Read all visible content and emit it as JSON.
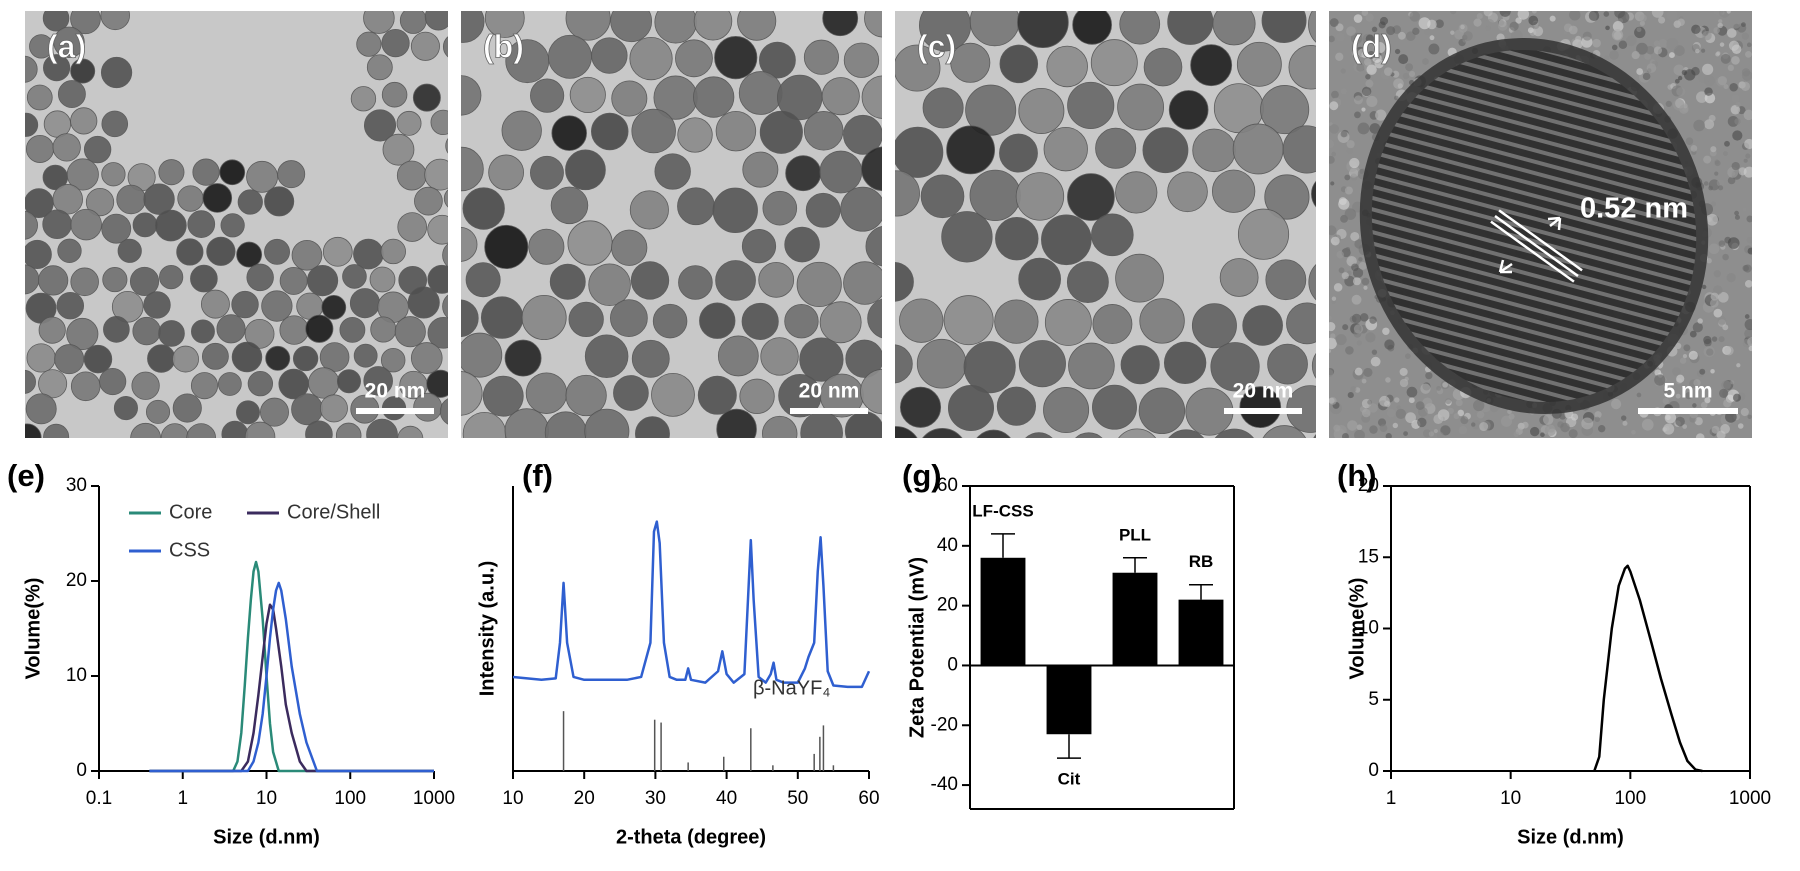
{
  "images": [
    {
      "panel": "(a)",
      "scale_bar": "20 nm"
    },
    {
      "panel": "(b)",
      "scale_bar": "20 nm"
    },
    {
      "panel": "(c)",
      "scale_bar": "20 nm"
    },
    {
      "panel": "(d)",
      "scale_bar": "5 nm",
      "annotation": "0.52 nm"
    }
  ],
  "chart_data": [
    {
      "type": "line",
      "panel": "(e)",
      "xlabel": "Size (d.nm)",
      "ylabel": "Volume(%)",
      "xscale": "log",
      "xlim": [
        0.1,
        1000
      ],
      "xticks": [
        0.1,
        1,
        10,
        100,
        1000
      ],
      "ylim": [
        0,
        30
      ],
      "yticks": [
        0,
        10,
        20,
        30
      ],
      "legend": "upper left",
      "series": [
        {
          "name": "Core",
          "color": "#2a8a78",
          "x": [
            0.4,
            4,
            4.5,
            5,
            5.5,
            6,
            6.5,
            7,
            7.5,
            8,
            9,
            10,
            11,
            12,
            14,
            1000
          ],
          "values": [
            0,
            0,
            1,
            4,
            9,
            14,
            18,
            21,
            22,
            21,
            16,
            10,
            5,
            2,
            0,
            0
          ]
        },
        {
          "name": "Core/Shell",
          "color": "#3b2b5e",
          "x": [
            0.4,
            5,
            6,
            7,
            8,
            9,
            10,
            11,
            12,
            13,
            15,
            17,
            20,
            25,
            30,
            1000
          ],
          "values": [
            0,
            0,
            1,
            4,
            8,
            12,
            15.5,
            17.5,
            17,
            15,
            11,
            7,
            4,
            1,
            0,
            0
          ]
        },
        {
          "name": "CSS",
          "color": "#2f5fd0",
          "x": [
            0.4,
            6,
            7,
            8,
            9,
            10,
            11,
            12,
            13,
            14,
            15,
            17,
            20,
            25,
            30,
            40,
            1000
          ],
          "values": [
            0,
            0,
            1,
            3,
            6,
            10,
            14,
            17,
            19,
            19.8,
            19,
            16,
            11,
            6,
            3,
            0,
            0
          ]
        }
      ]
    },
    {
      "type": "line",
      "panel": "(f)",
      "xlabel": "2-theta (degree)",
      "ylabel": "Intensity (a.u.)",
      "xlim": [
        10,
        60
      ],
      "xticks": [
        10,
        20,
        30,
        40,
        50,
        60
      ],
      "ylim": [
        0,
        100
      ],
      "color": "#2f5fd0",
      "x": [
        10,
        12,
        14,
        16,
        16.6,
        17.1,
        17.6,
        18.5,
        20,
        22,
        24,
        26,
        28,
        29.3,
        29.8,
        30.2,
        30.6,
        31.2,
        32,
        33,
        34.2,
        34.6,
        35,
        37,
        38.8,
        39.4,
        40,
        41,
        42.5,
        43,
        43.4,
        43.8,
        44.5,
        45.5,
        46.2,
        46.6,
        47,
        48,
        50,
        51,
        51.5,
        52.3,
        52.8,
        53.2,
        53.6,
        54.2,
        55,
        57,
        59,
        60
      ],
      "values": [
        33,
        32.5,
        32,
        32.5,
        45,
        66,
        45,
        33,
        32,
        32,
        32,
        32,
        33,
        45,
        84,
        87.5,
        80,
        45,
        33,
        32,
        32,
        36,
        32,
        31,
        35,
        42,
        34,
        31,
        34,
        60,
        81,
        60,
        33,
        31,
        34,
        38,
        32,
        31,
        31,
        36,
        40,
        45,
        70,
        82,
        65,
        35,
        30,
        29.5,
        29.5,
        35
      ],
      "reference": {
        "label": "β-NaYF₄",
        "color": "#555555",
        "x": [
          17.1,
          29.9,
          30.8,
          34.6,
          39.6,
          43.4,
          46.5,
          52.3,
          53.1,
          53.6,
          55
        ],
        "values": [
          21,
          18,
          17,
          3,
          5,
          15,
          2,
          6,
          12,
          16,
          2
        ]
      }
    },
    {
      "type": "bar",
      "panel": "(g)",
      "ylabel": "Zeta Potential (mV)",
      "categories": [
        "LF-CSS",
        "Cit",
        "PLL",
        "RB"
      ],
      "values": [
        36,
        -23,
        31,
        22
      ],
      "errors": [
        8,
        8,
        5,
        5
      ],
      "color": "#000000",
      "ylim": [
        -48,
        60
      ],
      "yticks": [
        -40,
        -20,
        0,
        20,
        40,
        60
      ],
      "frame": true
    },
    {
      "type": "line",
      "panel": "(h)",
      "xlabel": "Size (d.nm)",
      "ylabel": "Volume(%)",
      "xscale": "log",
      "xlim": [
        1,
        1000
      ],
      "xticks": [
        1,
        10,
        100,
        1000
      ],
      "ylim": [
        0,
        20
      ],
      "yticks": [
        0,
        5,
        10,
        15,
        20
      ],
      "frame": true,
      "color": "#000000",
      "x": [
        50,
        55,
        60,
        70,
        80,
        90,
        95,
        100,
        120,
        150,
        180,
        220,
        260,
        300,
        350,
        400
      ],
      "values": [
        0,
        1,
        5,
        10,
        13,
        14.2,
        14.4,
        14,
        12,
        9,
        6.5,
        4,
        2,
        0.7,
        0.1,
        0
      ]
    }
  ]
}
